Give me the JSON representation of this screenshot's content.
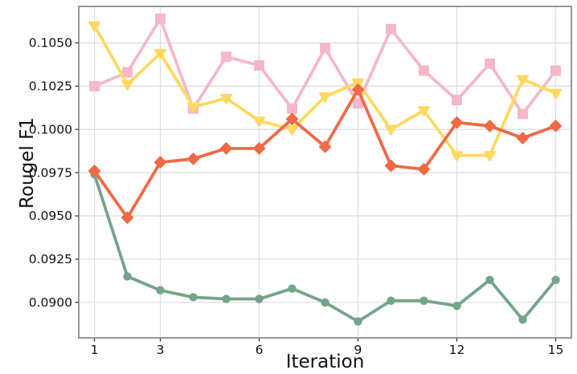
{
  "chart_data": {
    "type": "line",
    "title": "",
    "xlabel": "Iteration",
    "ylabel": "Rougel F1",
    "x": [
      1,
      2,
      3,
      4,
      5,
      6,
      7,
      8,
      9,
      10,
      11,
      12,
      13,
      14,
      15
    ],
    "xticks": [
      1,
      3,
      6,
      9,
      12,
      15
    ],
    "xtick_labels": [
      "1",
      "3",
      "6",
      "9",
      "12",
      "15"
    ],
    "yticks": [
      0.09,
      0.0925,
      0.095,
      0.0975,
      0.1,
      0.1025,
      0.105
    ],
    "ytick_labels": [
      "0.0900",
      "0.0925",
      "0.0950",
      "0.0975",
      "0.1000",
      "0.1025",
      "0.1050"
    ],
    "xlim": [
      0.524,
      15.476
    ],
    "ylim": [
      0.08795,
      0.10711
    ],
    "grid": true,
    "legend_position": "none",
    "series": [
      {
        "name": "green-circle-series",
        "marker": "circle",
        "color": "#74A489",
        "values": [
          0.0974,
          0.0915,
          0.0907,
          0.0903,
          0.0902,
          0.0902,
          0.0908,
          0.09,
          0.0889,
          0.0901,
          0.0901,
          0.0898,
          0.0913,
          0.089,
          0.0913
        ]
      },
      {
        "name": "pink-square-series",
        "marker": "square",
        "color": "#F5B8C8",
        "values": [
          0.1025,
          0.1033,
          0.1064,
          0.1012,
          0.1042,
          0.1037,
          0.1012,
          0.1047,
          0.1015,
          0.1058,
          0.1034,
          0.1017,
          0.1038,
          0.1009,
          0.1034
        ]
      },
      {
        "name": "yellow-triangle-series",
        "marker": "triangle-down",
        "color": "#FED95F",
        "values": [
          0.106,
          0.1026,
          0.1044,
          0.1013,
          0.1018,
          0.1005,
          0.1,
          0.1019,
          0.1027,
          0.1,
          0.1011,
          0.0985,
          0.0985,
          0.1029,
          0.1021
        ]
      },
      {
        "name": "orange-diamond-series",
        "marker": "diamond",
        "color": "#EF6A45",
        "values": [
          0.0976,
          0.0949,
          0.0981,
          0.0983,
          0.0989,
          0.0989,
          0.1006,
          0.099,
          0.1023,
          0.0979,
          0.0977,
          0.1004,
          0.1002,
          0.0995,
          0.1002
        ]
      }
    ],
    "style": {
      "grid_color": "#DCDCDC",
      "spine_color": "#7F7F7F",
      "tick_color": "#333333",
      "background": "#FFFFFF"
    }
  }
}
